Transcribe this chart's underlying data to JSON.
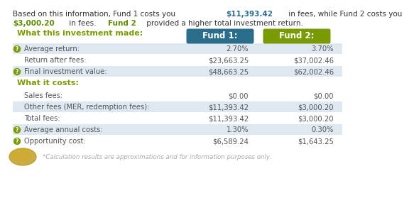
{
  "fund1_header": "Fund 1:",
  "fund2_header": "Fund 2:",
  "fund1_header_color": "#2a6e8c",
  "fund2_header_color": "#7a9a01",
  "section1_title": "What this investment made:",
  "section2_title": "What it costs:",
  "rows_made": [
    {
      "label": "Average return:",
      "f1": "2.70%",
      "f2": "3.70%",
      "has_icon": true,
      "shaded": true
    },
    {
      "label": "Return after fees:",
      "f1": "$23,663.25",
      "f2": "$37,002.46",
      "has_icon": false,
      "shaded": false
    },
    {
      "label": "Final investment value:",
      "f1": "$48,663.25",
      "f2": "$62,002.46",
      "has_icon": true,
      "shaded": true
    }
  ],
  "rows_costs": [
    {
      "label": "Sales fees:",
      "f1": "$0.00",
      "f2": "$0.00",
      "has_icon": false,
      "shaded": false
    },
    {
      "label": "Other fees (MER, redemption fees):",
      "f1": "$11,393.42",
      "f2": "$3,000.20",
      "has_icon": false,
      "shaded": true
    },
    {
      "label": "Total fees:",
      "f1": "$11,393.42",
      "f2": "$3,000.20",
      "has_icon": false,
      "shaded": false
    },
    {
      "label": "Average annual costs:",
      "f1": "1.30%",
      "f2": "0.30%",
      "has_icon": true,
      "shaded": true
    },
    {
      "label": "Opportunity cost:",
      "f1": "$6,589.24",
      "f2": "$1,643.25",
      "has_icon": true,
      "shaded": false
    }
  ],
  "footer_text": "*Calculation results are approximations and for information purposes only.",
  "bg_color": "#ffffff",
  "section_title_color": "#7a9a01",
  "row_text_color": "#555555",
  "shaded_color": "#dde8f0",
  "icon_color": "#7a9a01",
  "highlight_green": "#5a8a00",
  "highlight_teal": "#2a6e8c",
  "intro_line1_parts": [
    [
      "Based on this information, Fund 1 costs you ",
      "#333333",
      "normal"
    ],
    [
      "$11,393.42",
      "#2a6e8c",
      "bold"
    ],
    [
      " in fees, while Fund 2 costs you",
      "#333333",
      "normal"
    ]
  ],
  "intro_line2_parts": [
    [
      "$3,000.20",
      "#5a8a00",
      "bold"
    ],
    [
      " in fees. ",
      "#333333",
      "normal"
    ],
    [
      "Fund 2",
      "#5a8a00",
      "bold"
    ],
    [
      " provided a higher total investment return.",
      "#333333",
      "normal"
    ]
  ],
  "intro_fontsize": 7.5,
  "row_fontsize": 7.2,
  "section_fontsize": 8.0,
  "header_fontsize": 8.5
}
